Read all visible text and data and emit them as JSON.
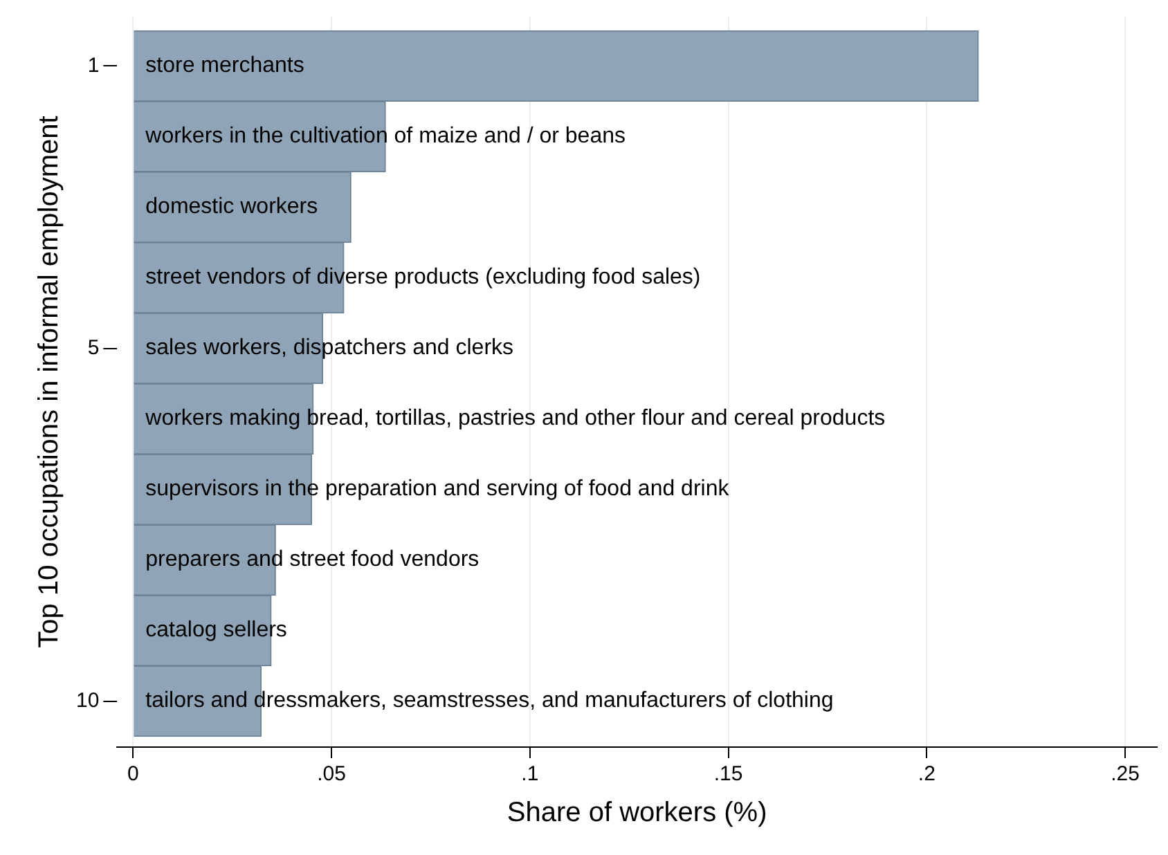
{
  "chart_data": {
    "type": "bar",
    "orientation": "horizontal",
    "x": [
      1,
      2,
      3,
      4,
      5,
      6,
      7,
      8,
      9,
      10
    ],
    "values": [
      0.213,
      0.0636,
      0.0549,
      0.0531,
      0.0478,
      0.0454,
      0.045,
      0.0359,
      0.0348,
      0.0323
    ],
    "annotations": [
      "store merchants",
      "workers in the cultivation of maize and / or beans",
      "domestic workers",
      "street vendors of diverse products (excluding food sales)",
      "sales workers, dispatchers and clerks",
      "workers making bread, tortillas, pastries and other flour and cereal products",
      "supervisors in the preparation and serving of food and drink",
      "preparers and street food vendors",
      "catalog sellers",
      "tailors and dressmakers, seamstresses, and manufacturers of clothing"
    ],
    "color": "#90a4b7",
    "xlabel": "Share of workers (%)",
    "ylabel": "Top 10 occupations in informal employment",
    "xlim": [
      -0.004,
      0.258
    ],
    "xticks": [
      0,
      {
        "value": 0.05,
        "label": ".05"
      },
      {
        "value": 0.1,
        "label": ".1"
      },
      {
        "value": 0.15,
        "label": ".15"
      },
      {
        "value": 0.2,
        "label": ".2"
      },
      {
        "value": 0.25,
        "label": ".25"
      }
    ],
    "ylim": [
      10.65,
      0.3
    ],
    "yticks": [
      1,
      5,
      10
    ],
    "grid": "x",
    "legend": false
  }
}
